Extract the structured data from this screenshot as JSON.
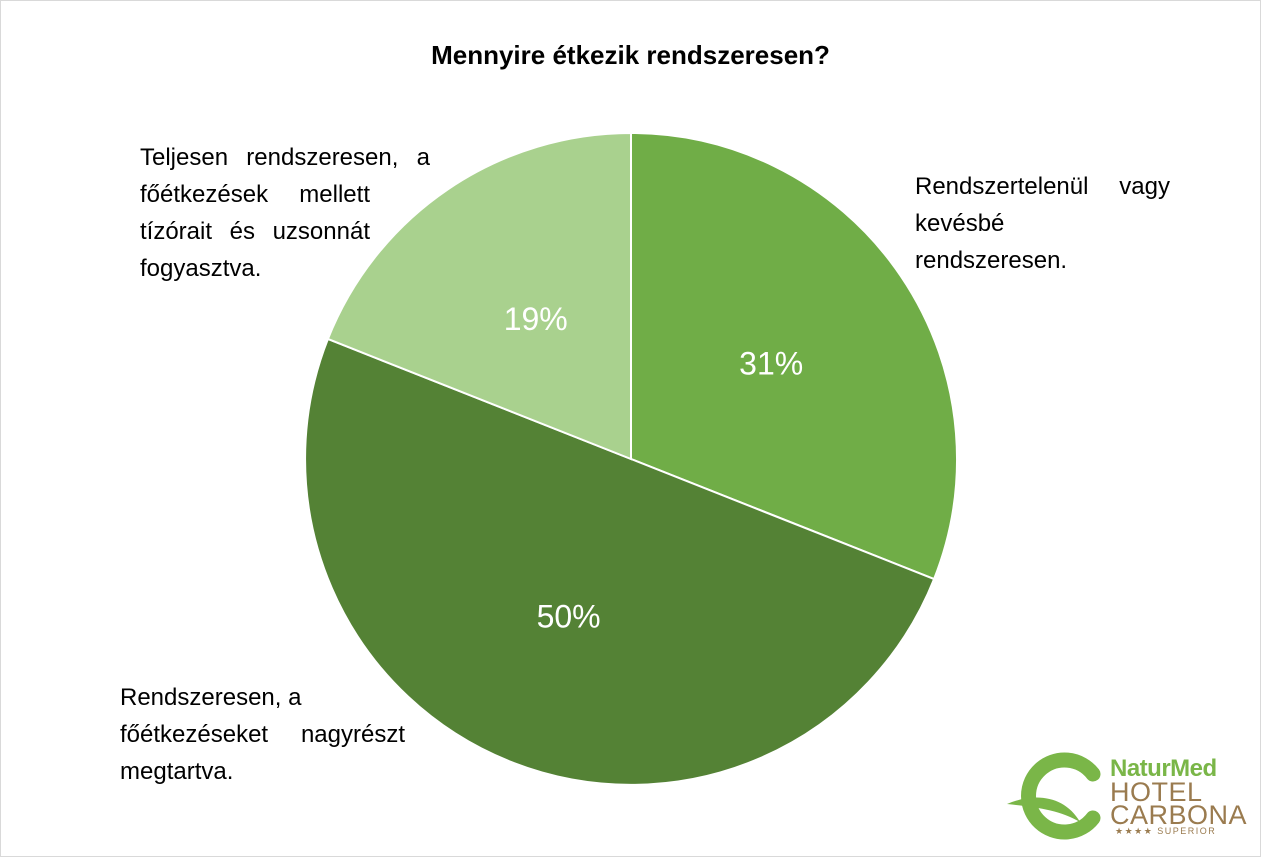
{
  "chart_data": {
    "type": "pie",
    "title": "Mennyire étkezik rendszeresen?",
    "slices": [
      {
        "label": "Rendszertelenül vagy kevésbé rendszeresen.",
        "value": 31,
        "display": "31%",
        "color": "#70ad47"
      },
      {
        "label": "Rendszeresen, a főétkezéseket nagyrészt megtartva.",
        "value": 50,
        "display": "50%",
        "color": "#548235"
      },
      {
        "label": "Teljesen rendszeresen, a főétkezések mellett tízórait és uzsonnát fogyasztva.",
        "value": 19,
        "display": "19%",
        "color": "#a9d18e"
      }
    ],
    "start": "12 o'clock, clockwise"
  },
  "labels": {
    "slice0_lines": [
      "Rendszertelenül vagy",
      "kevésbé",
      "rendszeresen."
    ],
    "slice1_lines": [
      "Rendszeresen, a",
      "főétkezéseket nagyrészt",
      "megtartva."
    ],
    "slice2_lines": [
      "Teljesen rendszeresen, a",
      "főétkezések mellett",
      "tízórait és uzsonnát",
      "fogyasztva."
    ]
  },
  "logo": {
    "line1": "NaturMed",
    "line2": "HOTEL",
    "line3": "CARBONA",
    "line4": "★★★★ SUPERIOR"
  }
}
